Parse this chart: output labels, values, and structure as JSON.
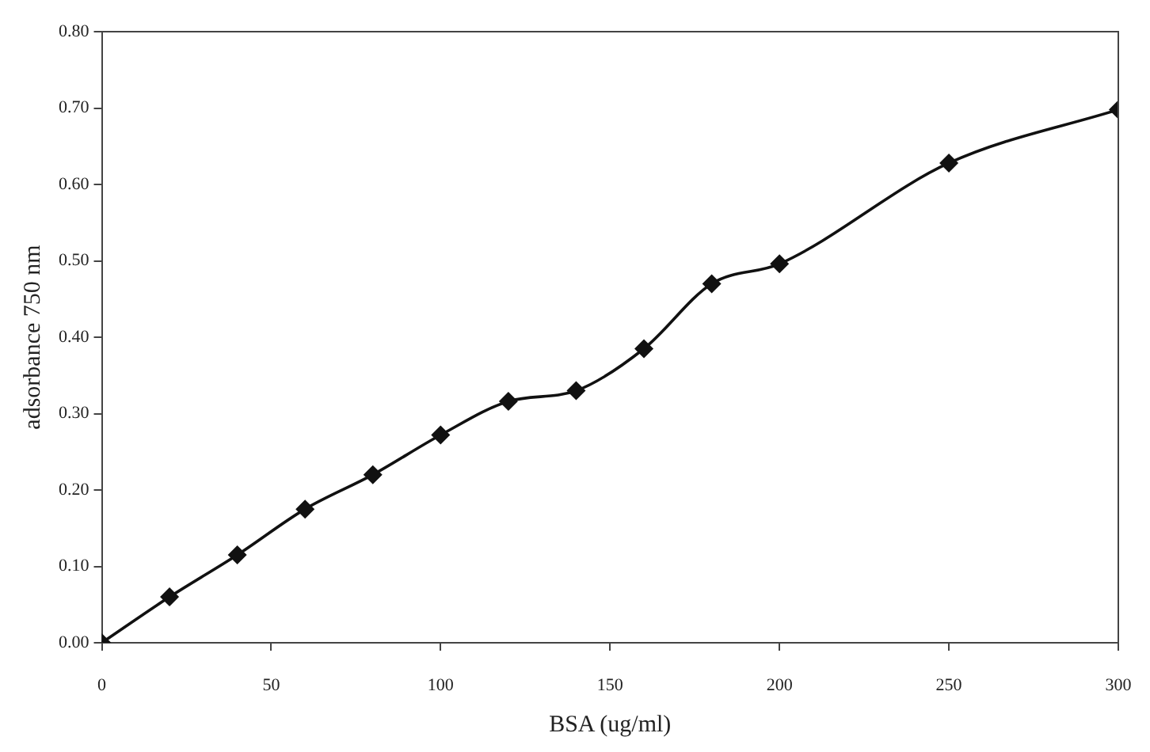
{
  "chart_data": {
    "type": "line",
    "xlabel": "BSA (ug/ml)",
    "ylabel": "adsorbance 750 nm",
    "x": [
      0,
      20,
      40,
      60,
      80,
      100,
      120,
      140,
      160,
      180,
      200,
      250,
      300
    ],
    "series": [
      {
        "color": "#111111",
        "values": [
          0,
          0.06,
          0.115,
          0.175,
          0.22,
          0.272,
          0.316,
          0.33,
          0.385,
          0.47,
          0.496,
          0.628,
          0.698
        ]
      }
    ],
    "xlim": [
      0,
      300
    ],
    "xticks": [
      0,
      50,
      100,
      150,
      200,
      250,
      300
    ],
    "ylim": [
      0,
      0.8
    ],
    "yticks": [
      {
        "value": 0,
        "label": "0.00"
      },
      {
        "value": 0.1,
        "label": "0.10"
      },
      {
        "value": 0.2,
        "label": "0.20"
      },
      {
        "value": 0.3,
        "label": "0.30"
      },
      {
        "value": 0.4,
        "label": "0.40"
      },
      {
        "value": 0.5,
        "label": "0.50"
      },
      {
        "value": 0.6,
        "label": "0.60"
      },
      {
        "value": 0.7,
        "label": "0.70"
      },
      {
        "value": 0.8,
        "label": "0.80"
      }
    ],
    "grid": false,
    "legend": false,
    "marker": "diamond",
    "line_style": "solid"
  }
}
